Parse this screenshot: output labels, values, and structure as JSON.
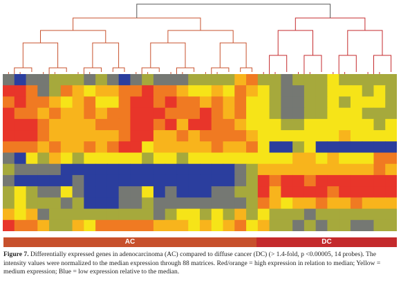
{
  "figure": {
    "groups": [
      {
        "label": "AC",
        "color": "#c7502c"
      },
      {
        "label": "DC",
        "color": "#c42a2c"
      }
    ],
    "caption_label": "Figure 7.",
    "caption_text": " Differentially expressed genes in adenocarcinoma (AC) compared to diffuse cancer (DC) (> 1.4-fold, p <0.00005, 14 probes). The intensity values were normalized to the median expression through 88 matrices. Red/orange = high expression in relation to median; Yellow = medium expression; Blue = low expression relative to the median."
  },
  "chart_data": {
    "type": "heatmap",
    "row_count": 14,
    "column_count": 34,
    "column_groups": [
      {
        "label": "AC",
        "columns": 22
      },
      {
        "label": "DC",
        "columns": 12
      }
    ],
    "level_scale": {
      "-3": "blue (low)",
      "-2": "gray",
      "-1": "olive",
      "0": "yellow (medium)",
      "1": "light orange",
      "2": "orange",
      "3": "red (high)"
    },
    "colors": {
      "-3": "#2b3e9e",
      "-2": "#757873",
      "-1": "#a6a93c",
      "0": "#f6e418",
      "1": "#f8b41c",
      "2": "#f07a22",
      "3": "#e8352a"
    },
    "values": [
      [
        -2,
        -3,
        -2,
        -2,
        -1,
        -1,
        -1,
        -2,
        -1,
        -2,
        -3,
        -2,
        -1,
        -2,
        -2,
        -2,
        -1,
        -1,
        -1,
        -1,
        1,
        2,
        -1,
        -1,
        -2,
        -1,
        -1,
        -1,
        0,
        -1,
        -1,
        -1,
        -1,
        -1
      ],
      [
        3,
        3,
        2,
        -2,
        -1,
        2,
        1,
        0,
        1,
        1,
        2,
        2,
        3,
        2,
        2,
        1,
        0,
        0,
        1,
        0,
        2,
        1,
        0,
        -1,
        -2,
        -2,
        -1,
        -1,
        0,
        0,
        0,
        -1,
        0,
        -1
      ],
      [
        2,
        3,
        2,
        2,
        1,
        0,
        1,
        2,
        0,
        0,
        2,
        3,
        3,
        2,
        3,
        2,
        2,
        1,
        2,
        1,
        2,
        0,
        0,
        -1,
        -2,
        -2,
        -1,
        -1,
        0,
        -1,
        0,
        0,
        0,
        -1
      ],
      [
        3,
        2,
        2,
        1,
        2,
        1,
        1,
        2,
        1,
        2,
        2,
        3,
        3,
        3,
        2,
        2,
        2,
        3,
        2,
        1,
        2,
        0,
        0,
        -1,
        -2,
        -2,
        -1,
        -1,
        0,
        0,
        0,
        -1,
        -1,
        -1
      ],
      [
        3,
        3,
        3,
        2,
        1,
        1,
        1,
        1,
        2,
        2,
        2,
        3,
        3,
        2,
        3,
        1,
        3,
        3,
        2,
        2,
        1,
        0,
        0,
        0,
        -1,
        -1,
        0,
        0,
        0,
        0,
        0,
        0,
        -1,
        0
      ],
      [
        3,
        3,
        3,
        2,
        1,
        1,
        1,
        1,
        1,
        1,
        2,
        3,
        3,
        1,
        1,
        2,
        1,
        2,
        2,
        2,
        2,
        1,
        0,
        0,
        0,
        0,
        0,
        0,
        0,
        1,
        0,
        0,
        0,
        0
      ],
      [
        2,
        2,
        2,
        1,
        2,
        1,
        1,
        2,
        1,
        2,
        3,
        3,
        0,
        1,
        1,
        1,
        1,
        1,
        2,
        1,
        1,
        2,
        0,
        -3,
        -3,
        -1,
        0,
        -3,
        -3,
        -3,
        -3,
        -3,
        -3,
        -3
      ],
      [
        -2,
        -3,
        0,
        -1,
        1,
        0,
        -1,
        0,
        0,
        0,
        0,
        0,
        -1,
        0,
        0,
        -1,
        0,
        0,
        0,
        0,
        0,
        0,
        0,
        0,
        0,
        1,
        1,
        0,
        1,
        0,
        0,
        0,
        2,
        2
      ],
      [
        -1,
        -2,
        -2,
        -2,
        -2,
        -3,
        -3,
        -3,
        -3,
        -3,
        -3,
        -3,
        -3,
        -3,
        -3,
        -3,
        -3,
        -3,
        -3,
        -3,
        -2,
        -1,
        1,
        1,
        1,
        1,
        1,
        1,
        1,
        1,
        1,
        1,
        2,
        1
      ],
      [
        -2,
        -3,
        -3,
        -3,
        -3,
        -3,
        -2,
        -3,
        -3,
        -3,
        -3,
        -3,
        -3,
        -3,
        -3,
        -3,
        -3,
        -3,
        -3,
        -3,
        -2,
        -1,
        3,
        2,
        3,
        3,
        2,
        3,
        3,
        3,
        3,
        3,
        3,
        3
      ],
      [
        -1,
        0,
        -1,
        -2,
        -2,
        0,
        -2,
        -3,
        -3,
        -3,
        -2,
        -2,
        0,
        -3,
        -2,
        -3,
        -3,
        -3,
        -2,
        -2,
        -1,
        -1,
        3,
        1,
        3,
        3,
        3,
        3,
        2,
        3,
        3,
        3,
        3,
        3
      ],
      [
        -1,
        0,
        -1,
        -1,
        -1,
        -2,
        -1,
        -3,
        -3,
        -3,
        -2,
        -2,
        -1,
        -2,
        -2,
        -2,
        -2,
        -2,
        -2,
        -2,
        -2,
        -1,
        2,
        1,
        0,
        1,
        1,
        2,
        1,
        1,
        2,
        1,
        1,
        1
      ],
      [
        1,
        0,
        1,
        -2,
        -1,
        -1,
        -1,
        -1,
        -1,
        -1,
        -1,
        -1,
        -1,
        -2,
        -1,
        0,
        0,
        -1,
        0,
        -1,
        1,
        -1,
        0,
        -1,
        -1,
        -1,
        -2,
        -1,
        -1,
        -1,
        -1,
        -1,
        -1,
        -1
      ],
      [
        3,
        2,
        2,
        1,
        -1,
        -1,
        1,
        0,
        2,
        2,
        2,
        2,
        2,
        1,
        1,
        1,
        0,
        1,
        0,
        1,
        2,
        0,
        1,
        -1,
        -1,
        -2,
        -1,
        -2,
        -1,
        -1,
        -2,
        -2,
        -1,
        -1
      ]
    ]
  }
}
